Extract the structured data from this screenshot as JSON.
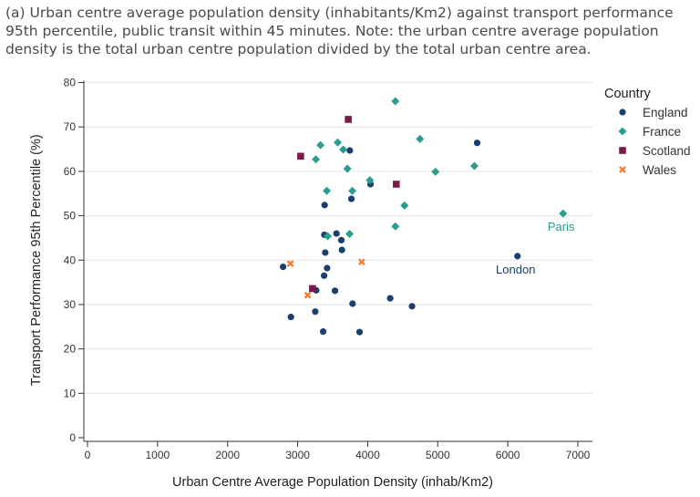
{
  "caption": "(a) Urban centre average population density (inhabitants/Km2) against transport performance 95th percentile, public transit within 45 minutes. Note: the urban centre average population density is the total urban centre population divided by the total urban centre area.",
  "chart_data": {
    "type": "scatter",
    "title": "",
    "xlabel": "Urban Centre Average Population Density (inhab/Km2)",
    "ylabel": "Transport Performance 95th Percentile (%)",
    "xlim": [
      0,
      7000
    ],
    "ylim": [
      0,
      80
    ],
    "xticks": [
      0,
      1000,
      2000,
      3000,
      4000,
      5000,
      6000,
      7000
    ],
    "yticks": [
      0,
      10,
      20,
      30,
      40,
      50,
      60,
      70,
      80
    ],
    "grid": "horizontal",
    "legend": {
      "title": "Country",
      "position": "right"
    },
    "series": [
      {
        "name": "England",
        "color": "#1a3f6e",
        "marker": "circle",
        "points": [
          [
            5562,
            66.4
          ],
          [
            3745,
            64.7
          ],
          [
            4040,
            57.1
          ],
          [
            3767,
            53.8
          ],
          [
            3385,
            52.4
          ],
          [
            3381,
            45.7
          ],
          [
            3554,
            46.0
          ],
          [
            3624,
            44.5
          ],
          [
            3394,
            41.7
          ],
          [
            3632,
            42.3
          ],
          [
            2792,
            38.5
          ],
          [
            3420,
            38.2
          ],
          [
            3377,
            36.5
          ],
          [
            3264,
            33.2
          ],
          [
            3533,
            33.1
          ],
          [
            4321,
            31.4
          ],
          [
            3784,
            30.2
          ],
          [
            4633,
            29.6
          ],
          [
            3251,
            28.4
          ],
          [
            2904,
            27.2
          ],
          [
            3364,
            23.9
          ],
          [
            3884,
            23.8
          ],
          [
            6138,
            40.9
          ]
        ]
      },
      {
        "name": "France",
        "color": "#2a9d8f",
        "marker": "diamond",
        "points": [
          [
            4395,
            75.8
          ],
          [
            4746,
            67.3
          ],
          [
            3325,
            65.9
          ],
          [
            3572,
            66.5
          ],
          [
            3650,
            64.9
          ],
          [
            3260,
            62.7
          ],
          [
            3710,
            60.6
          ],
          [
            5523,
            61.2
          ],
          [
            4967,
            59.9
          ],
          [
            4031,
            58.0
          ],
          [
            3416,
            55.6
          ],
          [
            3780,
            55.6
          ],
          [
            4525,
            52.3
          ],
          [
            4395,
            47.6
          ],
          [
            3429,
            45.4
          ],
          [
            3741,
            45.9
          ],
          [
            6788,
            50.5
          ]
        ]
      },
      {
        "name": "Scotland",
        "color": "#7b1a4b",
        "marker": "square",
        "points": [
          [
            3723,
            71.7
          ],
          [
            3043,
            63.4
          ],
          [
            4408,
            57.1
          ],
          [
            3212,
            33.6
          ]
        ]
      },
      {
        "name": "Wales",
        "color": "#f47c30",
        "marker": "x",
        "points": [
          [
            2896,
            39.2
          ],
          [
            3914,
            39.6
          ],
          [
            3143,
            32.1
          ]
        ]
      }
    ],
    "annotations": [
      {
        "text": "Paris",
        "x": 6788,
        "y": 50.5,
        "color": "#2a9d8f"
      },
      {
        "text": "London",
        "x": 6138,
        "y": 40.9,
        "color": "#1a3f6e"
      }
    ]
  }
}
